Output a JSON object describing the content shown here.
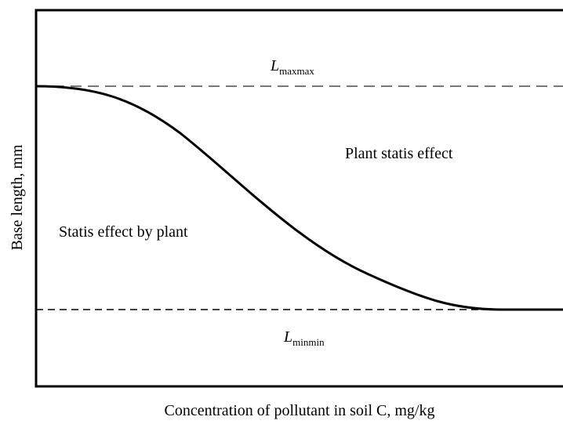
{
  "diagram": {
    "upper_limit": {
      "symbol": "L",
      "subscript": "maxmax"
    },
    "lower_limit": {
      "symbol": "L",
      "subscript": "minmin"
    },
    "region_upper": "Plant statis effect",
    "region_lower": "Statis effect by plant",
    "y_axis_label": "Base length, mm",
    "x_axis_label": "Concentration of pollutant in soil C, mg/kg"
  }
}
